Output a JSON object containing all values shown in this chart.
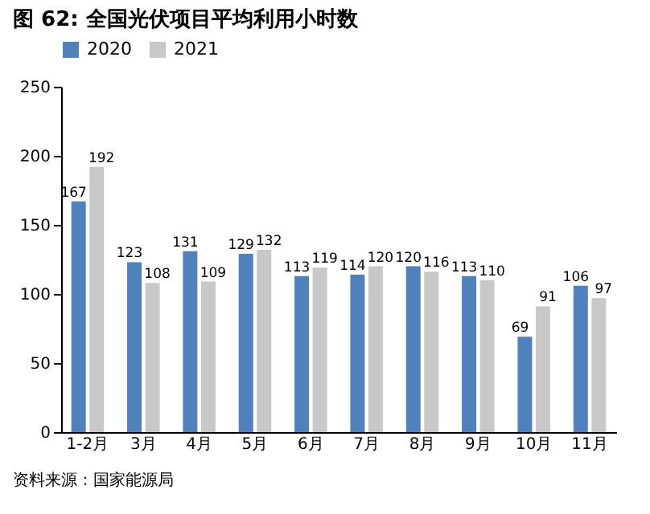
{
  "chart_data": {
    "type": "bar",
    "title": "图 62:  全国光伏项目平均利用小时数",
    "categories": [
      "1-2月",
      "3月",
      "4月",
      "5月",
      "6月",
      "7月",
      "8月",
      "9月",
      "10月",
      "11月"
    ],
    "series": [
      {
        "name": "2020",
        "color": "#4f81bd",
        "values": [
          167,
          123,
          131,
          129,
          113,
          114,
          120,
          113,
          69,
          106
        ]
      },
      {
        "name": "2021",
        "color": "#c8c8c8",
        "values": [
          192,
          108,
          109,
          132,
          119,
          120,
          116,
          110,
          91,
          97
        ]
      }
    ],
    "ylim": [
      0,
      250
    ],
    "yticks": [
      0,
      50,
      100,
      150,
      200,
      250
    ],
    "grid": false,
    "legend": "top",
    "data_labels": true,
    "annotations": [
      "资料来源：国家能源局"
    ]
  }
}
